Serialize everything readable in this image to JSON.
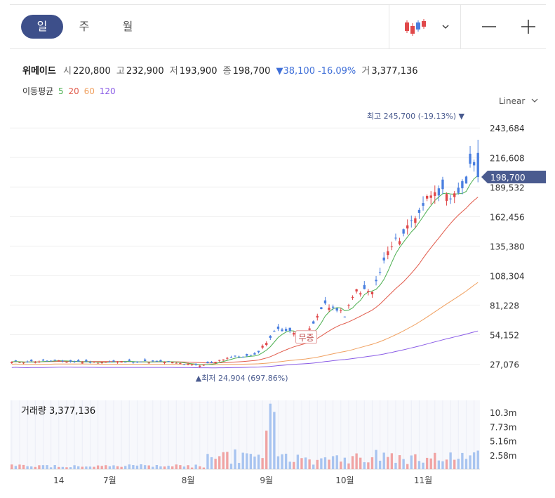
{
  "tabs": [
    {
      "label": "일",
      "active": true
    },
    {
      "label": "주",
      "active": false
    },
    {
      "label": "월",
      "active": false
    }
  ],
  "icons": {
    "chart_type": "candlestick-icon",
    "dropdown": "chevron-down-icon",
    "zoom_out": "minus-icon",
    "zoom_in": "plus-icon",
    "scale_dropdown": "chevron-down-icon"
  },
  "stock": {
    "name": "위메이드",
    "open_label": "시",
    "open": "220,800",
    "high_label": "고",
    "high": "232,900",
    "low_label": "저",
    "low": "193,900",
    "close_label": "종",
    "close": "198,700",
    "change": "▼38,100",
    "change_pct": "-16.09%",
    "volume_label": "거",
    "volume": "3,377,136"
  },
  "ma": {
    "label": "이동평균",
    "items": [
      {
        "label": "5",
        "color": "#4caf50"
      },
      {
        "label": "20",
        "color": "#e15a4a"
      },
      {
        "label": "60",
        "color": "#f0a060"
      },
      {
        "label": "120",
        "color": "#8a5ce6"
      }
    ]
  },
  "scale_mode": "Linear",
  "colors": {
    "up": "#e0484a",
    "down": "#4a7fe0",
    "vol_up": "#f0a3a3",
    "vol_down": "#a8c4f0",
    "price_tag": "#4a5b8f"
  },
  "chart_data": {
    "type": "candlestick",
    "ylim": [
      10000,
      258000
    ],
    "yticks": [
      "243,684",
      "216,608",
      "189,532",
      "162,456",
      "135,380",
      "108,304",
      "81,228",
      "54,152",
      "27,076"
    ],
    "ytick_values": [
      243684,
      216608,
      189532,
      162456,
      135380,
      108304,
      81228,
      54152,
      27076
    ],
    "xticks": [
      "14",
      "7월",
      "8월",
      "9월",
      "10월",
      "11월"
    ],
    "xtick_index": [
      12,
      25,
      45,
      65,
      85,
      105
    ],
    "current_price": "198,700",
    "current_value": 198700,
    "high_label": "최고",
    "high_value": "245,700 (-19.13%)",
    "high_index": 117,
    "high_price": 245700,
    "low_label": "최저",
    "low_value": "24,904 (697.86%)",
    "low_index": 48,
    "low_price": 24904,
    "event_label": "무증",
    "event_index": 75,
    "event_price": 52000,
    "n_candles": 120,
    "volume_title": "거래량",
    "volume_value": "3,377,136",
    "volume_ylim": [
      0,
      12500000
    ],
    "volume_ticks": [
      "10.3m",
      "7.73m",
      "5.16m",
      "2.58m"
    ],
    "volume_tick_values": [
      10300000,
      7730000,
      5160000,
      2580000
    ]
  }
}
